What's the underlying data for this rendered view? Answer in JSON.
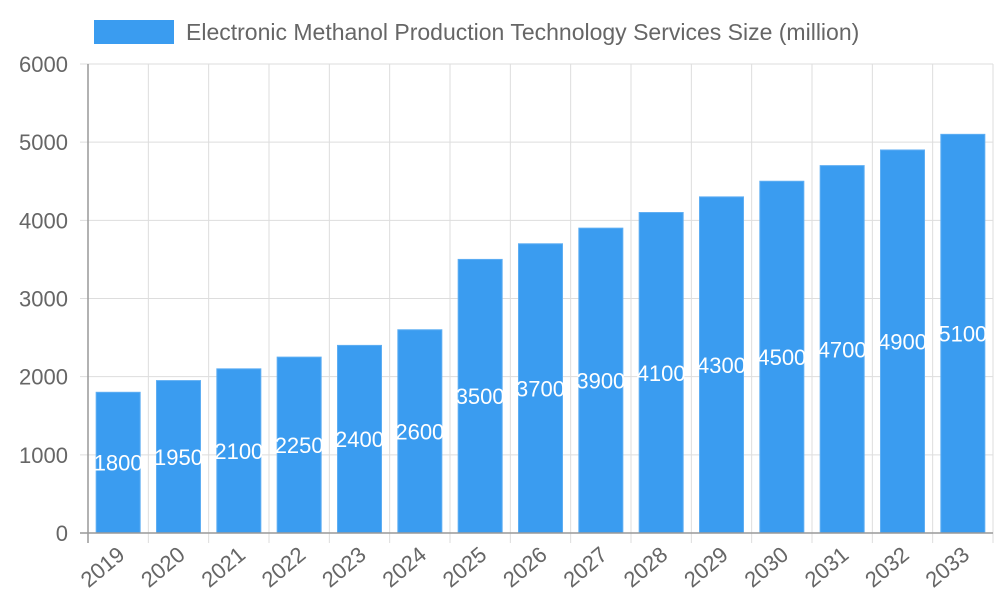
{
  "chart_data": {
    "type": "bar",
    "categories": [
      "2019",
      "2020",
      "2021",
      "2022",
      "2023",
      "2024",
      "2025",
      "2026",
      "2027",
      "2028",
      "2029",
      "2030",
      "2031",
      "2032",
      "2033"
    ],
    "series": [
      {
        "name": "Electronic Methanol Production Technology Services Size (million)",
        "values": [
          1800,
          1950,
          2100,
          2250,
          2400,
          2600,
          3500,
          3700,
          3900,
          4100,
          4300,
          4500,
          4700,
          4900,
          5100
        ]
      }
    ],
    "ylim": [
      0,
      6000
    ],
    "yticks": [
      "0",
      "1000",
      "2000",
      "3000",
      "4000",
      "5000",
      "6000"
    ],
    "grid": true,
    "legend_position": "top",
    "data_labels": true,
    "colors": {
      "bar": "#3a9cf0",
      "bar_border": "#5eaef3",
      "grid": "#dddddd",
      "axis": "#999999",
      "text": "#666666",
      "label": "#ffffff"
    }
  }
}
